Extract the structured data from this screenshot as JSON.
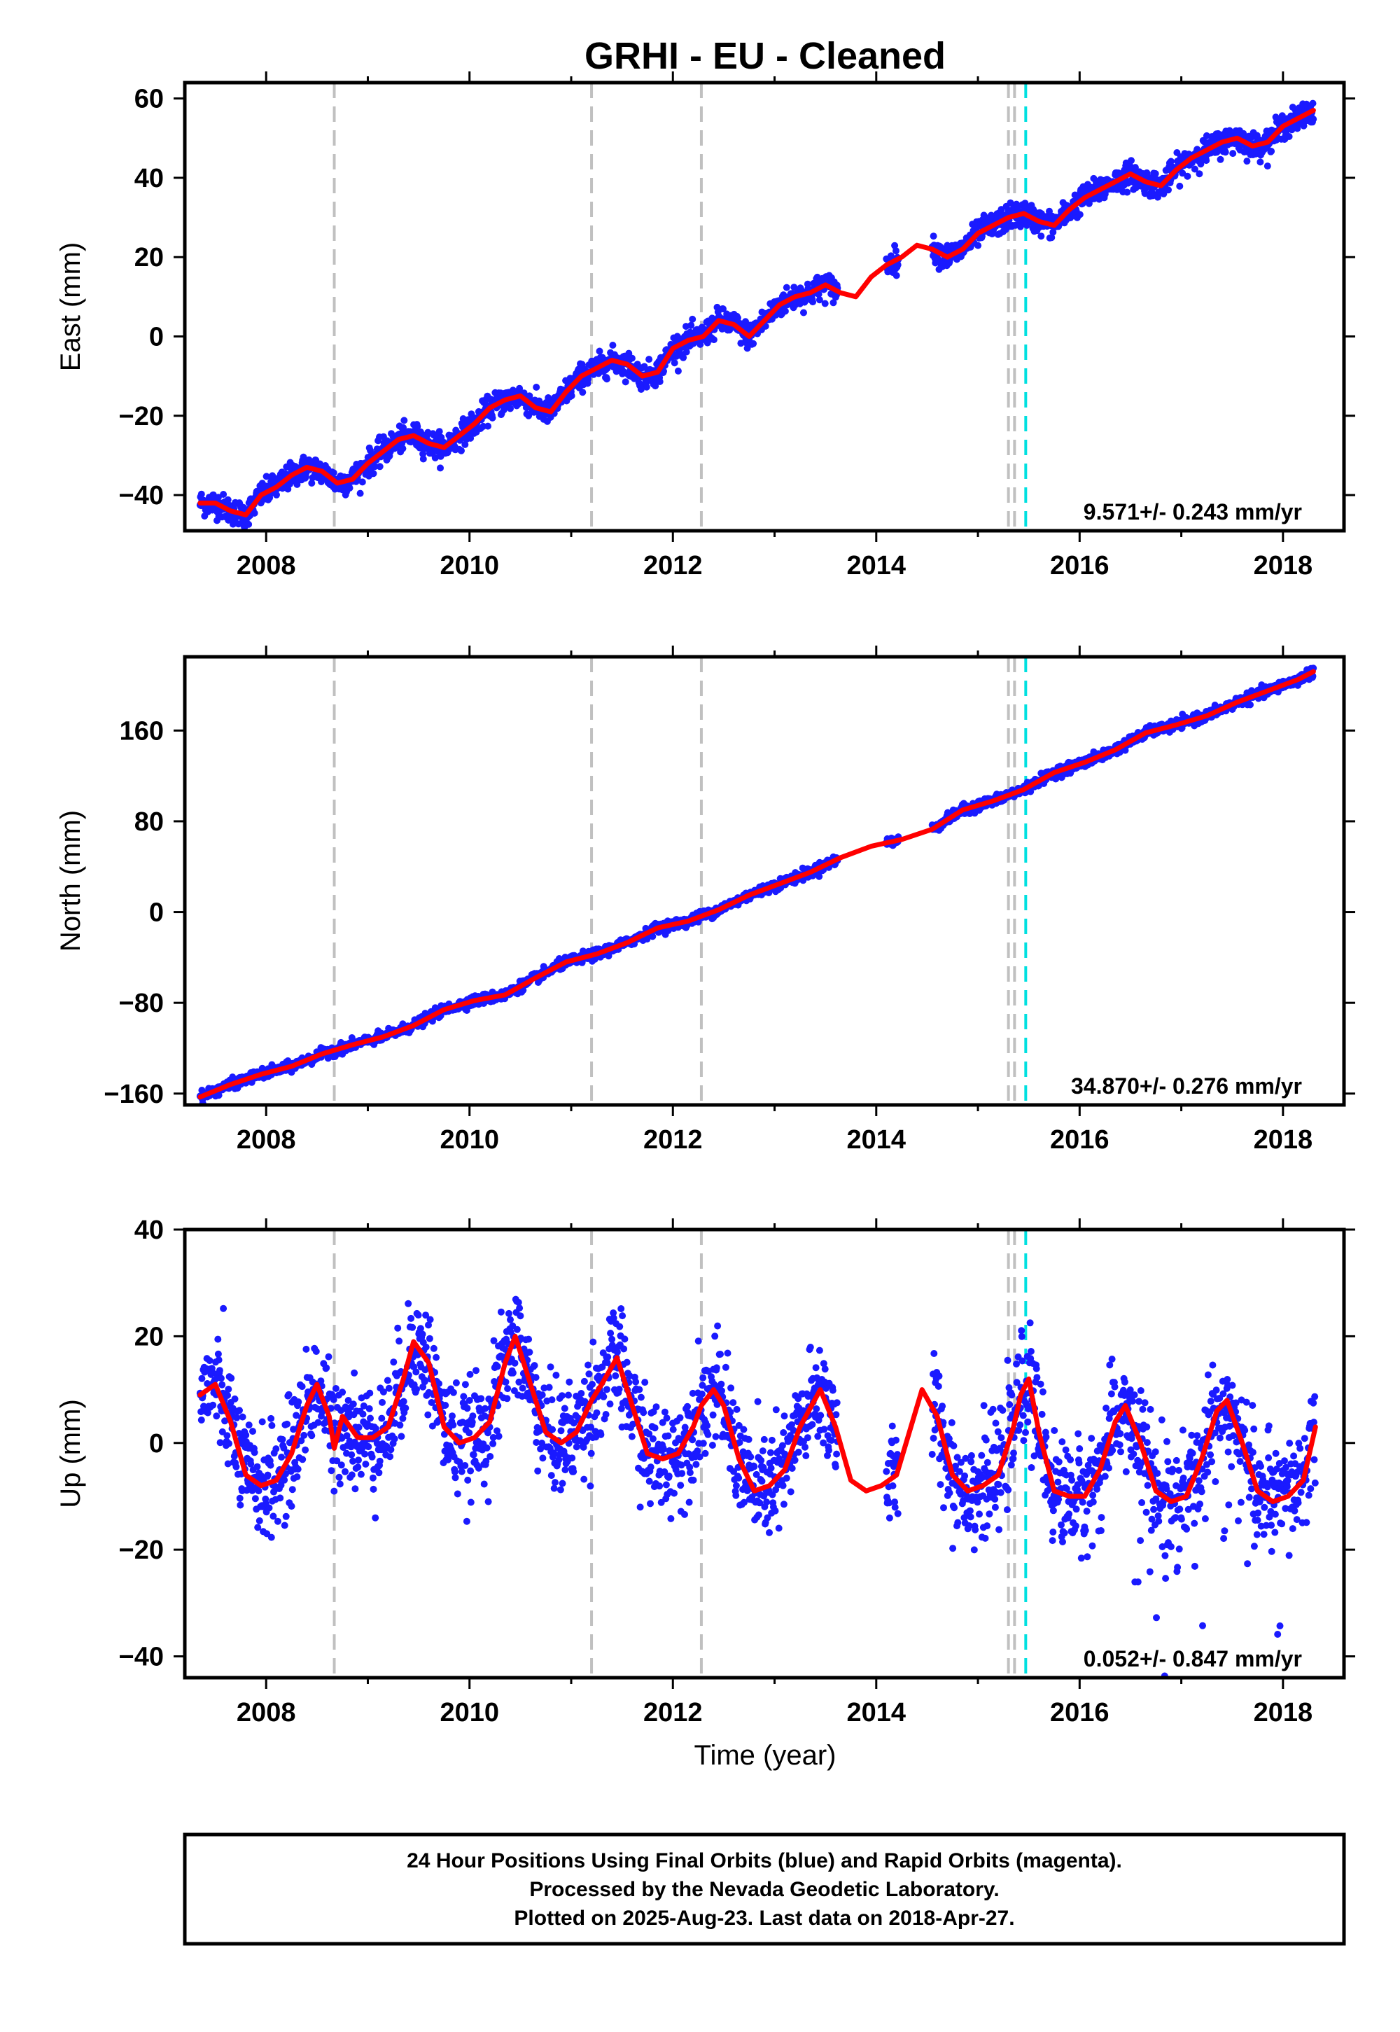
{
  "title": "GRHI  - EU - Cleaned",
  "xlabel": "Time (year)",
  "footer": {
    "line1": "24 Hour Positions Using Final Orbits (blue) and Rapid Orbits (magenta).",
    "line2": "Processed by the Nevada Geodetic Laboratory.",
    "line3": "Plotted on 2025-Aug-23. Last data on 2018-Apr-27."
  },
  "colors": {
    "points": "#1a1aff",
    "fit": "#ff0000",
    "event_gray": "#c0c0c0",
    "event_cyan": "#00e0e0"
  },
  "chart_data": [
    {
      "type": "scatter",
      "component": "east",
      "ylabel": "East (mm)",
      "xlim": [
        2007.2,
        2018.6
      ],
      "ylim": [
        -49,
        64
      ],
      "yticks": [
        -40,
        -20,
        0,
        20,
        40,
        60
      ],
      "xticks": [
        2008,
        2010,
        2012,
        2014,
        2016,
        2018
      ],
      "rate_label": "9.571+/- 0.243 mm/yr",
      "event_lines": [
        {
          "x": 2008.67,
          "kind": "gray"
        },
        {
          "x": 2011.2,
          "kind": "gray"
        },
        {
          "x": 2012.28,
          "kind": "gray"
        },
        {
          "x": 2015.3,
          "kind": "gray"
        },
        {
          "x": 2015.36,
          "kind": "gray"
        },
        {
          "x": 2015.47,
          "kind": "cyan"
        }
      ],
      "fit": {
        "x": [
          2007.35,
          2007.5,
          2007.65,
          2007.8,
          2007.95,
          2008.1,
          2008.25,
          2008.4,
          2008.55,
          2008.7,
          2008.85,
          2009.0,
          2009.15,
          2009.3,
          2009.45,
          2009.6,
          2009.75,
          2009.9,
          2010.05,
          2010.2,
          2010.35,
          2010.5,
          2010.65,
          2010.8,
          2010.95,
          2011.1,
          2011.25,
          2011.4,
          2011.55,
          2011.7,
          2011.85,
          2012.0,
          2012.15,
          2012.3,
          2012.45,
          2012.6,
          2012.75,
          2012.9,
          2013.05,
          2013.2,
          2013.35,
          2013.5,
          2013.65,
          2013.8,
          2013.95,
          2014.1,
          2014.25,
          2014.4,
          2014.55,
          2014.7,
          2014.85,
          2015.0,
          2015.15,
          2015.3,
          2015.45,
          2015.6,
          2015.75,
          2015.9,
          2016.05,
          2016.2,
          2016.35,
          2016.5,
          2016.65,
          2016.8,
          2016.95,
          2017.1,
          2017.25,
          2017.4,
          2017.55,
          2017.7,
          2017.85,
          2018.0,
          2018.15,
          2018.3
        ],
        "y": [
          -42,
          -42,
          -44,
          -45,
          -40,
          -38,
          -35,
          -33,
          -34,
          -37,
          -36,
          -32,
          -29,
          -26,
          -25,
          -27,
          -28,
          -25,
          -22,
          -18,
          -16,
          -15,
          -18,
          -19,
          -14,
          -10,
          -8,
          -6,
          -7,
          -10,
          -9,
          -3,
          -1,
          0,
          4,
          3,
          0,
          4,
          8,
          10,
          11,
          13,
          11,
          10,
          15,
          18,
          20,
          23,
          22,
          20,
          22,
          26,
          28,
          30,
          31,
          29,
          28,
          32,
          35,
          37,
          39,
          41,
          39,
          38,
          42,
          45,
          47,
          49,
          50,
          48,
          49,
          53,
          55,
          57
        ]
      }
    },
    {
      "type": "scatter",
      "component": "north",
      "ylabel": "North (mm)",
      "xlim": [
        2007.2,
        2018.6
      ],
      "ylim": [
        -170,
        225
      ],
      "yticks": [
        -160,
        -80,
        0,
        80,
        160
      ],
      "xticks": [
        2008,
        2010,
        2012,
        2014,
        2016,
        2018
      ],
      "rate_label": "34.870+/- 0.276 mm/yr",
      "event_lines": [
        {
          "x": 2008.67,
          "kind": "gray"
        },
        {
          "x": 2011.2,
          "kind": "gray"
        },
        {
          "x": 2012.28,
          "kind": "gray"
        },
        {
          "x": 2015.3,
          "kind": "gray"
        },
        {
          "x": 2015.36,
          "kind": "gray"
        },
        {
          "x": 2015.47,
          "kind": "cyan"
        }
      ],
      "fit": {
        "x": [
          2007.35,
          2007.65,
          2007.95,
          2008.25,
          2008.55,
          2008.85,
          2009.15,
          2009.45,
          2009.75,
          2010.05,
          2010.35,
          2010.65,
          2010.95,
          2011.25,
          2011.55,
          2011.85,
          2012.15,
          2012.45,
          2012.75,
          2013.05,
          2013.35,
          2013.65,
          2013.95,
          2014.25,
          2014.55,
          2014.85,
          2015.15,
          2015.45,
          2015.75,
          2016.05,
          2016.35,
          2016.65,
          2016.95,
          2017.25,
          2017.55,
          2017.85,
          2018.15,
          2018.3
        ],
        "y": [
          -163,
          -152,
          -143,
          -136,
          -125,
          -117,
          -110,
          -100,
          -86,
          -78,
          -73,
          -58,
          -44,
          -37,
          -27,
          -14,
          -8,
          2,
          15,
          25,
          35,
          48,
          58,
          64,
          73,
          90,
          98,
          108,
          123,
          132,
          143,
          158,
          165,
          173,
          185,
          195,
          205,
          212
        ]
      }
    },
    {
      "type": "scatter",
      "component": "up",
      "ylabel": "Up (mm)",
      "xlim": [
        2007.2,
        2018.6
      ],
      "ylim": [
        -44,
        40
      ],
      "yticks": [
        -40,
        -20,
        0,
        20,
        40
      ],
      "xticks": [
        2008,
        2010,
        2012,
        2014,
        2016,
        2018
      ],
      "rate_label": "0.052+/- 0.847 mm/yr",
      "event_lines": [
        {
          "x": 2008.67,
          "kind": "gray"
        },
        {
          "x": 2011.2,
          "kind": "gray"
        },
        {
          "x": 2012.28,
          "kind": "gray"
        },
        {
          "x": 2015.3,
          "kind": "gray"
        },
        {
          "x": 2015.36,
          "kind": "gray"
        },
        {
          "x": 2015.47,
          "kind": "cyan"
        }
      ],
      "fit": {
        "x": [
          2007.35,
          2007.5,
          2007.65,
          2007.8,
          2007.95,
          2008.1,
          2008.25,
          2008.4,
          2008.5,
          2008.62,
          2008.67,
          2008.75,
          2008.9,
          2009.05,
          2009.2,
          2009.35,
          2009.45,
          2009.6,
          2009.75,
          2009.9,
          2010.05,
          2010.2,
          2010.35,
          2010.45,
          2010.6,
          2010.75,
          2010.9,
          2011.05,
          2011.2,
          2011.3,
          2011.45,
          2011.6,
          2011.75,
          2011.9,
          2012.05,
          2012.2,
          2012.28,
          2012.4,
          2012.5,
          2012.65,
          2012.8,
          2012.95,
          2013.1,
          2013.25,
          2013.45,
          2013.6,
          2013.75,
          2013.9,
          2014.05,
          2014.2,
          2014.45,
          2014.6,
          2014.75,
          2014.9,
          2015.05,
          2015.2,
          2015.35,
          2015.42,
          2015.5,
          2015.6,
          2015.75,
          2015.9,
          2016.05,
          2016.2,
          2016.35,
          2016.45,
          2016.6,
          2016.75,
          2016.9,
          2017.05,
          2017.2,
          2017.35,
          2017.45,
          2017.6,
          2017.75,
          2017.9,
          2018.05,
          2018.2,
          2018.32
        ],
        "y": [
          9,
          11,
          4,
          -6,
          -8,
          -7,
          -2,
          7,
          11,
          5,
          -1,
          5,
          1,
          1,
          3,
          12,
          19,
          15,
          3,
          0,
          1,
          4,
          15,
          20,
          11,
          2,
          0,
          2,
          8,
          11,
          16,
          7,
          -2,
          -3,
          -2,
          3,
          7,
          10,
          7,
          -3,
          -9,
          -8,
          -5,
          3,
          10,
          3,
          -7,
          -9,
          -8,
          -6,
          10,
          5,
          -6,
          -9,
          -8,
          -6,
          3,
          9,
          12,
          2,
          -9,
          -10,
          -10,
          -5,
          4,
          7,
          0,
          -9,
          -11,
          -10,
          -3,
          6,
          8,
          0,
          -9,
          -11,
          -10,
          -7,
          3
        ]
      }
    }
  ]
}
